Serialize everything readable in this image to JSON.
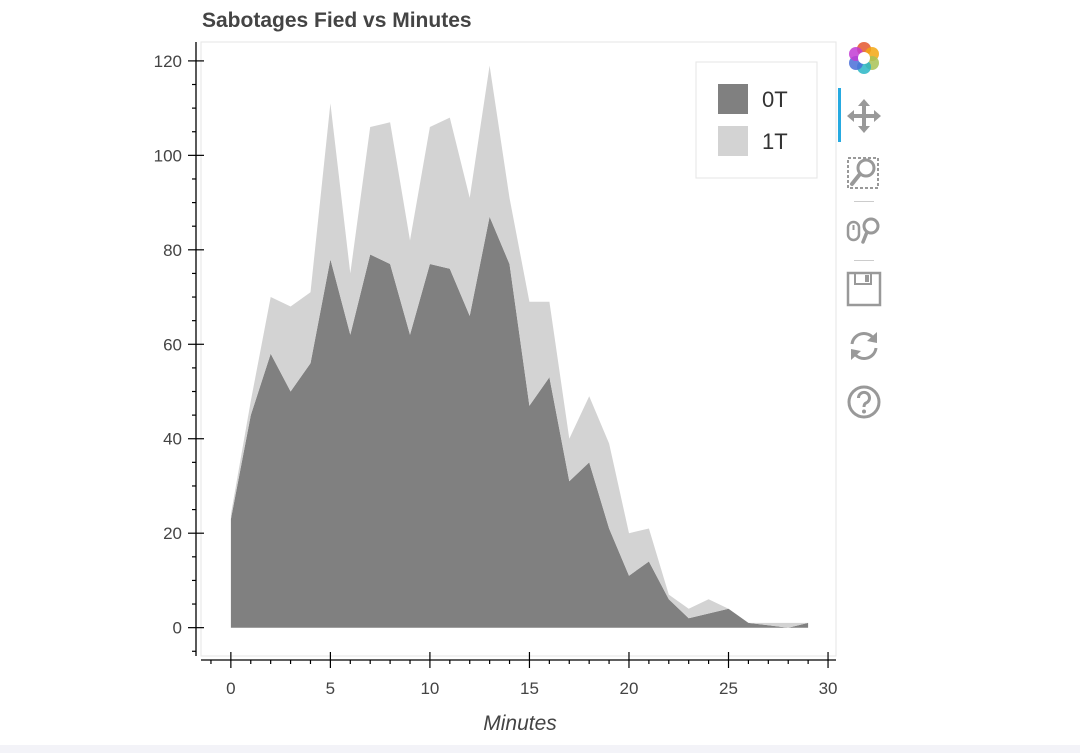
{
  "toolbar": {
    "tools": [
      {
        "name": "bokeh-logo-icon"
      },
      {
        "name": "pan-tool-icon",
        "active": true
      },
      {
        "name": "box-zoom-tool-icon"
      },
      {
        "name": "wheel-zoom-tool-icon"
      },
      {
        "name": "save-tool-icon"
      },
      {
        "name": "reset-tool-icon"
      },
      {
        "name": "help-tool-icon"
      }
    ]
  },
  "chart_data": {
    "type": "area",
    "stacked": true,
    "title": "Sabotages Fied vs Minutes",
    "xlabel": "Minutes",
    "ylabel": "",
    "xlim": [
      -1.5,
      30.4
    ],
    "ylim": [
      -6,
      124
    ],
    "x_ticks": [
      0,
      5,
      10,
      15,
      20,
      25,
      30
    ],
    "y_ticks": [
      0,
      20,
      40,
      60,
      80,
      100,
      120
    ],
    "grid": false,
    "legend_position": "top-right",
    "x": [
      0,
      1,
      2,
      3,
      4,
      5,
      6,
      7,
      8,
      9,
      10,
      11,
      12,
      13,
      14,
      15,
      16,
      17,
      18,
      19,
      20,
      21,
      22,
      23,
      24,
      25,
      26,
      27,
      28,
      29
    ],
    "series": [
      {
        "name": "0T",
        "color": "#808080",
        "values": [
          23,
          45,
          58,
          50,
          56,
          78,
          62,
          79,
          77,
          62,
          77,
          76,
          66,
          87,
          77,
          47,
          53,
          31,
          35,
          21,
          11,
          14,
          6,
          2,
          3,
          4,
          1,
          0.5,
          0,
          1
        ]
      },
      {
        "name": "1T",
        "color": "#d3d3d3",
        "values": [
          1,
          3,
          12,
          18,
          15,
          33,
          13,
          27,
          30,
          20,
          29,
          32,
          25,
          32,
          14,
          22,
          16,
          9,
          14,
          18,
          9,
          7,
          1,
          2,
          3,
          0,
          0,
          0.5,
          1,
          0
        ]
      }
    ]
  }
}
